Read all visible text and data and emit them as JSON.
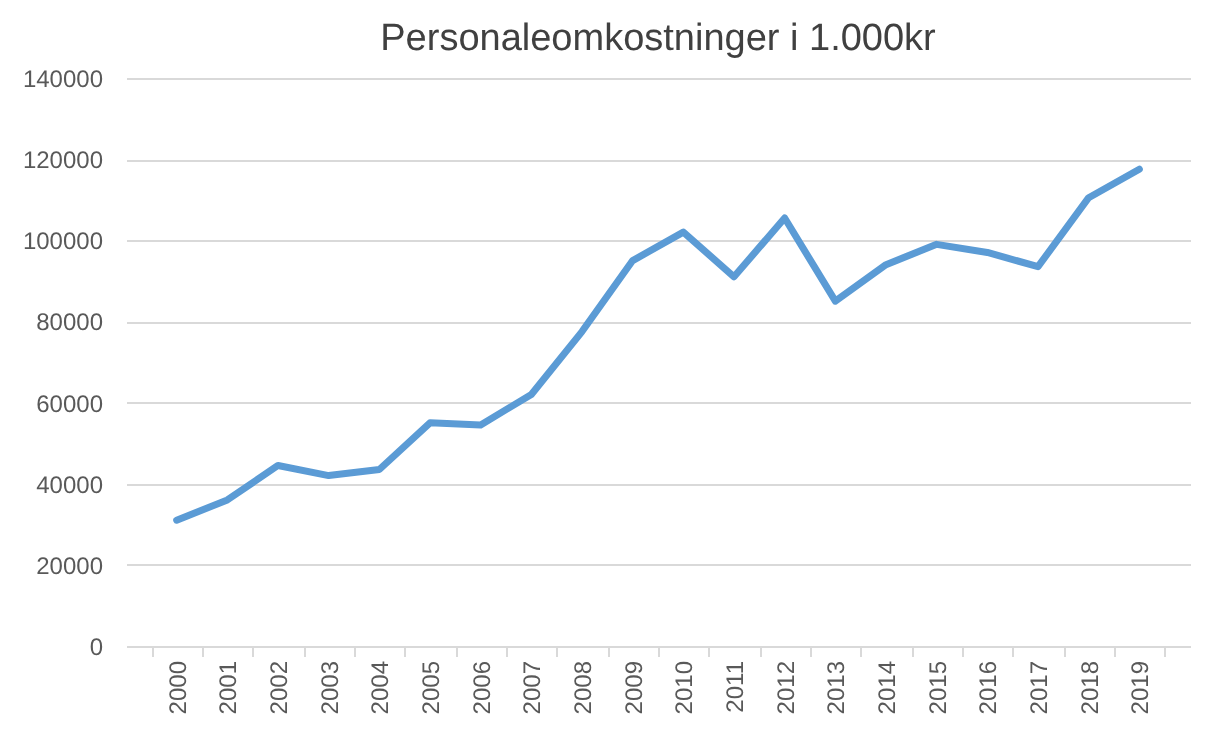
{
  "chart_data": {
    "type": "line",
    "title": "Personaleomkostninger i 1.000kr",
    "categories": [
      "2000",
      "2001",
      "2002",
      "2003",
      "2004",
      "2005",
      "2006",
      "2007",
      "2008",
      "2009",
      "2010",
      "2011",
      "2012",
      "2013",
      "2014",
      "2015",
      "2016",
      "2017",
      "2018",
      "2019"
    ],
    "series": [
      {
        "color": "#5b9bd5",
        "values": [
          31000,
          36000,
          44500,
          42000,
          43500,
          55000,
          54500,
          62000,
          77500,
          95000,
          102000,
          91000,
          105500,
          85000,
          94000,
          99000,
          97000,
          93500,
          110500,
          117500
        ]
      }
    ],
    "ylim": [
      0,
      140000
    ],
    "yticks": [
      0,
      20000,
      40000,
      60000,
      80000,
      100000,
      120000,
      140000
    ],
    "grid": "y",
    "legend": false,
    "marker": "none",
    "line_style": "solid"
  }
}
